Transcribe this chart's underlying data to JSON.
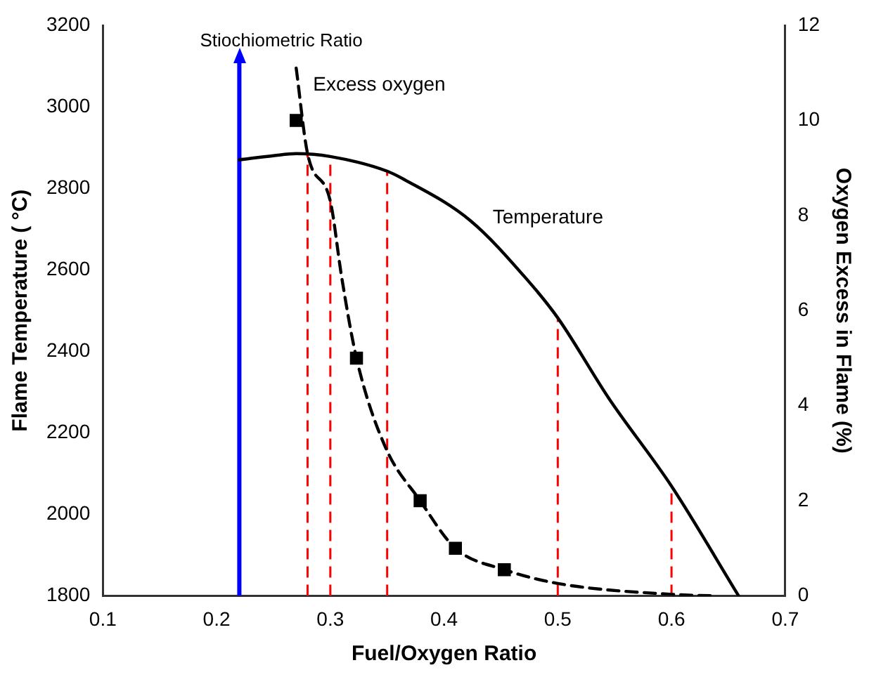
{
  "chart_data": {
    "type": "line",
    "xlabel": "Fuel/Oxygen Ratio",
    "ylabel": "Flame Temperature ( °C)",
    "y2label": "Oxygen Excess in Flame (%)",
    "xlim": [
      0.1,
      0.7
    ],
    "xticks": [
      0.1,
      0.2,
      0.3,
      0.4,
      0.5,
      0.6,
      0.7
    ],
    "ylim": [
      1800,
      3200
    ],
    "yticks": [
      1800,
      2000,
      2200,
      2400,
      2600,
      2800,
      3000,
      3200
    ],
    "y2lim": [
      0,
      12
    ],
    "y2ticks": [
      0,
      2,
      4,
      6,
      8,
      10,
      12
    ],
    "grid": false,
    "legend": false,
    "series": [
      {
        "name": "Temperature",
        "color": "#000000",
        "line_style": "solid",
        "marker": "none",
        "x": [
          0.22,
          0.25,
          0.27,
          0.3,
          0.35,
          0.364,
          0.423,
          0.473,
          0.5,
          0.545,
          0.6,
          0.659
        ],
        "values": [
          2870,
          2880,
          2885,
          2878,
          2842,
          2823,
          2721,
          2576,
          2482,
          2284,
          2069,
          1800
        ]
      },
      {
        "name": "Excess oxygen",
        "color": "#000000",
        "axis": "y2",
        "line_style": "dashed",
        "marker": "none",
        "x": [
          0.27,
          0.28,
          0.3,
          0.31,
          0.323,
          0.348,
          0.379,
          0.41,
          0.453,
          0.5,
          0.6,
          0.636
        ],
        "values": [
          11.1,
          9.3,
          8.3,
          6.7,
          5.0,
          3.15,
          2.0,
          1.0,
          0.55,
          0.26,
          0.03,
          0
        ]
      },
      {
        "type": "scatter",
        "color": "#000000",
        "axis": "y2",
        "marker": "square",
        "x": [
          0.27,
          0.323,
          0.379,
          0.41,
          0.453
        ],
        "values": [
          10.0,
          5.0,
          2.0,
          1.0,
          0.55
        ]
      }
    ],
    "ref_lines": [
      {
        "axis": "x",
        "value": 0.22,
        "label": "Stiochiometric Ratio",
        "color": "#0000ff",
        "line_style": "solid"
      },
      {
        "axis": "x",
        "value": 0.28,
        "color": "#ff0000",
        "line_style": "dashed"
      },
      {
        "axis": "x",
        "value": 0.3,
        "color": "#ff0000",
        "line_style": "dashed"
      },
      {
        "axis": "x",
        "value": 0.35,
        "color": "#ff0000",
        "line_style": "dashed"
      },
      {
        "axis": "x",
        "value": 0.5,
        "color": "#ff0000",
        "line_style": "dashed"
      },
      {
        "axis": "x",
        "value": 0.6,
        "color": "#ff0000",
        "line_style": "dashed"
      }
    ]
  }
}
